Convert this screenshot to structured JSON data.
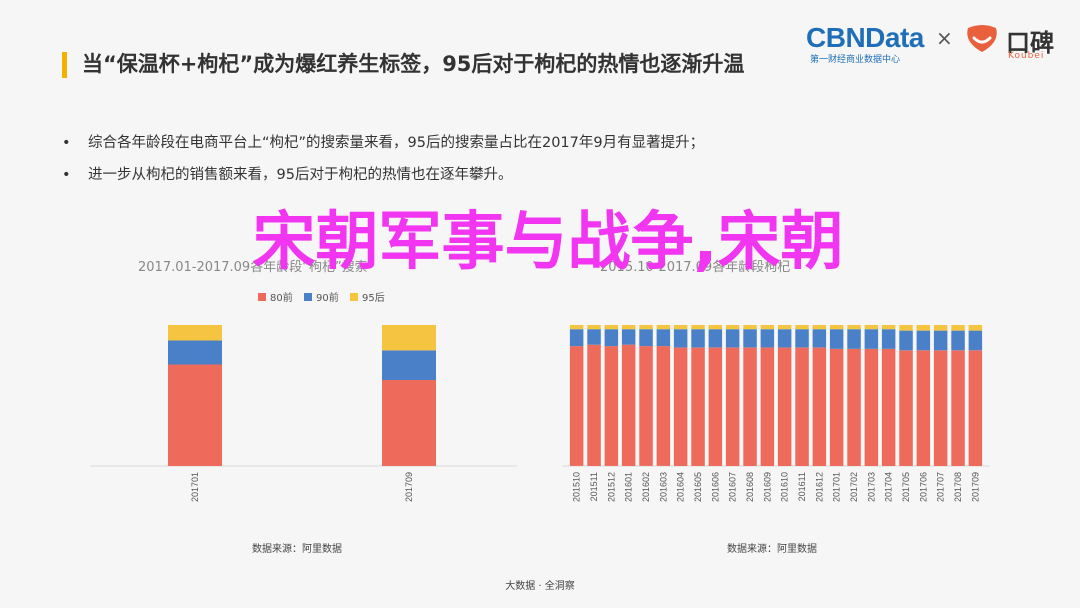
{
  "header": {
    "title": "当“保温杯+枸杞”成为爆红养生标签，95后对于枸杞的热情也逐渐升温",
    "accent_color": "#f2b100"
  },
  "logos": {
    "cbn_name": "CBNData",
    "cbn_sub": "第一财经商业数据中心",
    "times": "×",
    "koubei_name": "口碑",
    "koubei_sub": "Koubei"
  },
  "bullets": [
    "综合各年龄段在电商平台上“枸杞”的搜索量来看，95后的搜索量占比在2017年9月有显著提升；",
    "进一步从枸杞的销售额来看，95后对于枸杞的热情也在逐年攀升。"
  ],
  "overlay_text": "宋朝军事与战争,宋朝",
  "chart_data": [
    {
      "type": "bar",
      "stacked": true,
      "title": "2017.01-2017.09各年龄段“枸杞”搜索",
      "categories": [
        "201701",
        "201709"
      ],
      "series": [
        {
          "name": "80前",
          "color": "#ee6a5b",
          "values": [
            72,
            61
          ]
        },
        {
          "name": "90前",
          "color": "#4a80c8",
          "values": [
            17,
            21
          ]
        },
        {
          "name": "95后",
          "color": "#f5c542",
          "values": [
            11,
            18
          ]
        }
      ],
      "ylim": [
        0,
        100
      ],
      "legend": "top",
      "source": "数据来源：阿里数据"
    },
    {
      "type": "bar",
      "stacked": true,
      "title": "2015.10-2017.09各年龄段枸杞",
      "categories": [
        "201510",
        "201511",
        "201512",
        "201601",
        "201602",
        "201603",
        "201604",
        "201605",
        "201606",
        "201607",
        "201608",
        "201609",
        "201610",
        "201611",
        "201612",
        "201701",
        "201702",
        "201703",
        "201704",
        "201705",
        "201706",
        "201707",
        "201708",
        "201709"
      ],
      "series": [
        {
          "name": "80前",
          "color": "#ee6a5b",
          "values": [
            85,
            86,
            85,
            86,
            85,
            85,
            84,
            84,
            84,
            84,
            84,
            84,
            84,
            84,
            84,
            83,
            83,
            83,
            83,
            82,
            82,
            82,
            82,
            82
          ]
        },
        {
          "name": "90前",
          "color": "#4a80c8",
          "values": [
            12,
            11,
            12,
            11,
            12,
            12,
            13,
            13,
            13,
            13,
            13,
            13,
            13,
            13,
            13,
            14,
            14,
            14,
            14,
            14,
            14,
            14,
            14,
            14
          ]
        },
        {
          "name": "95后",
          "color": "#f5c542",
          "values": [
            3,
            3,
            3,
            3,
            3,
            3,
            3,
            3,
            3,
            3,
            3,
            3,
            3,
            3,
            3,
            3,
            3,
            3,
            3,
            4,
            4,
            4,
            4,
            4
          ]
        }
      ],
      "ylim": [
        0,
        100
      ],
      "source": "数据来源：阿里数据"
    }
  ],
  "footer": "大数据 · 全洞察"
}
